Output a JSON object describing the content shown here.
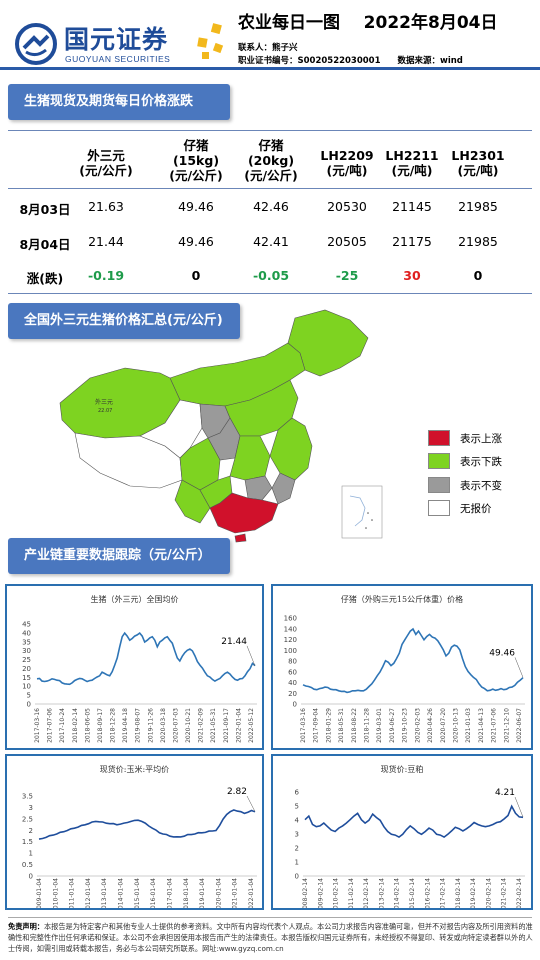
{
  "header": {
    "logo_cn": "国元证券",
    "logo_en": "GUOYUAN SECURITIES",
    "title": "农业每日一图    2022年8月04日",
    "contact": "联系人：熊子兴",
    "cert": "职业证书编号：S0020522030001",
    "source": "数据来源：wind"
  },
  "section1": {
    "title": "生猪现货及期货每日价格涨跌"
  },
  "price_table": {
    "headers": [
      "外三元\n(元/公斤)",
      "仔猪\n(15kg)\n(元/公斤)",
      "仔猪\n(20kg)\n(元/公斤)",
      "LH2209\n(元/吨)",
      "LH2211\n(元/吨)",
      "LH2301\n(元/吨)"
    ],
    "rows": [
      {
        "label": "8月03日",
        "values": [
          "21.63",
          "49.46",
          "42.46",
          "20530",
          "21145",
          "21985"
        ]
      },
      {
        "label": "8月04日",
        "values": [
          "21.44",
          "49.46",
          "42.41",
          "20505",
          "21175",
          "21985"
        ]
      },
      {
        "label": "涨(跌)",
        "values": [
          "-0.19",
          "0",
          "-0.05",
          "-25",
          "30",
          "0"
        ],
        "trend": [
          "down",
          "flat",
          "down",
          "down",
          "up",
          "flat"
        ]
      }
    ]
  },
  "section2": {
    "title": "全国外三元生猪价格汇总(元/公斤)"
  },
  "map": {
    "region_labels": [
      "外三元",
      "22.07"
    ],
    "colors": {
      "up": "#d0112b",
      "down": "#7ed321",
      "flat": "#9a9a9a",
      "none": "#ffffff"
    },
    "legend": [
      {
        "key": "up",
        "label": "表示上涨"
      },
      {
        "key": "down",
        "label": "表示下跌"
      },
      {
        "key": "flat",
        "label": "表示不变"
      },
      {
        "key": "none",
        "label": "无报价"
      }
    ]
  },
  "section3": {
    "title": "产业链重要数据跟踪（元/公斤）"
  },
  "charts": [
    {
      "title": "生猪（外三元）全国均价",
      "type": "line",
      "ylim": [
        0,
        45
      ],
      "yticks": [
        0,
        5,
        10,
        15,
        20,
        25,
        30,
        35,
        40,
        45
      ],
      "xticks": [
        "2017-03-16",
        "2017-07-06",
        "2017-10-24",
        "2018-02-14",
        "2018-06-05",
        "2018-09-17",
        "2018-12-28",
        "2019-04-18",
        "2019-08-07",
        "2019-11-26",
        "2020-03-18",
        "2020-07-03",
        "2020-10-21",
        "2021-02-09",
        "2021-05-31",
        "2021-09-17",
        "2022-01-04",
        "2022-05-12"
      ],
      "last_label": "21.44",
      "color": "#2e75b6",
      "values": [
        14,
        14.5,
        13,
        12.5,
        13,
        13.5,
        14,
        14,
        13.5,
        13,
        12,
        11.5,
        11,
        11.2,
        12,
        13,
        14,
        14.5,
        14,
        13.5,
        12.8,
        13,
        13.5,
        14.5,
        15,
        16,
        18,
        17,
        16.5,
        16,
        18,
        22,
        26,
        32,
        38,
        40,
        38,
        36,
        37,
        38,
        39,
        40,
        38,
        35,
        36,
        37,
        38,
        36,
        32,
        35,
        36,
        37,
        38,
        36,
        34,
        30,
        26,
        24,
        27,
        29,
        30,
        31,
        30,
        27,
        24,
        22,
        20,
        18,
        16,
        15,
        14,
        13,
        13.5,
        14.5,
        16,
        17,
        18,
        17,
        15,
        14,
        13.5,
        14,
        14.5,
        16,
        18,
        20,
        23,
        21.44
      ]
    },
    {
      "title": "仔猪（外购三元15公斤体重）价格",
      "type": "line",
      "ylim": [
        0,
        160
      ],
      "yticks": [
        0,
        20,
        40,
        60,
        80,
        100,
        120,
        140,
        160
      ],
      "xticks": [
        "2017-03-16",
        "2017-09-04",
        "2018-01-29",
        "2018-05-31",
        "2018-08-22",
        "2018-11-28",
        "2019-03-01",
        "2019-06-27",
        "2019-10-23",
        "2020-02-03",
        "2020-04-26",
        "2020-07-20",
        "2020-10-13",
        "2021-01-03",
        "2021-04-13",
        "2021-07-06",
        "2021-12-10",
        "2022-06-07"
      ],
      "last_label": "49.46",
      "color": "#2e75b6",
      "values": [
        35,
        34,
        33,
        30,
        28,
        27,
        28,
        30,
        32,
        30,
        28,
        27,
        26,
        25,
        24,
        23,
        22,
        23,
        24,
        25,
        26,
        24,
        25,
        28,
        32,
        38,
        45,
        52,
        60,
        70,
        80,
        78,
        72,
        75,
        85,
        95,
        110,
        120,
        128,
        135,
        140,
        130,
        135,
        128,
        120,
        125,
        130,
        125,
        122,
        118,
        110,
        100,
        90,
        95,
        105,
        110,
        108,
        100,
        85,
        70,
        60,
        55,
        50,
        45,
        38,
        32,
        28,
        25,
        26,
        27,
        26,
        27,
        28,
        27,
        28,
        30,
        32,
        35,
        40,
        45,
        49.46
      ]
    },
    {
      "title": "现货价:玉米:平均价",
      "type": "line",
      "ylim": [
        0,
        3.5
      ],
      "yticks": [
        0,
        0.5,
        1,
        1.5,
        2,
        2.5,
        3,
        3.5
      ],
      "xticks": [
        "2009-01-04",
        "2010-01-04",
        "2011-01-04",
        "2012-01-04",
        "2013-01-04",
        "2014-01-04",
        "2015-01-04",
        "2016-01-04",
        "2017-01-04",
        "2018-01-04",
        "2019-01-04",
        "2020-01-04",
        "2021-01-04",
        "2022-01-04"
      ],
      "last_label": "2.82",
      "color": "#1f4e9c",
      "values": [
        1.6,
        1.65,
        1.7,
        1.75,
        1.8,
        1.85,
        1.9,
        1.95,
        2.0,
        2.05,
        2.1,
        2.15,
        2.2,
        2.25,
        2.3,
        2.35,
        2.4,
        2.38,
        2.35,
        2.32,
        2.3,
        2.28,
        2.25,
        2.28,
        2.3,
        2.35,
        2.4,
        2.42,
        2.45,
        2.4,
        2.3,
        2.2,
        2.1,
        2.0,
        1.9,
        1.85,
        1.8,
        1.75,
        1.72,
        1.7,
        1.72,
        1.75,
        1.8,
        1.82,
        1.85,
        1.88,
        1.9,
        1.92,
        1.95,
        1.98,
        2.0,
        2.2,
        2.5,
        2.7,
        2.8,
        2.9,
        2.85,
        2.8,
        2.75,
        2.8,
        2.85,
        2.82
      ]
    },
    {
      "title": "现货价:豆粕",
      "type": "line",
      "ylim": [
        0,
        6
      ],
      "yticks": [
        0,
        1,
        2,
        3,
        4,
        5,
        6
      ],
      "xticks": [
        "2008-02-14",
        "2009-02-14",
        "2010-02-14",
        "2011-02-14",
        "2012-02-14",
        "2013-02-14",
        "2014-02-14",
        "2015-02-14",
        "2016-02-14",
        "2017-02-14",
        "2018-02-14",
        "2019-02-14",
        "2020-02-14",
        "2021-02-14",
        "2022-02-14"
      ],
      "last_label": "4.21",
      "color": "#1f4e9c",
      "values": [
        4.0,
        4.3,
        3.7,
        3.5,
        3.6,
        3.8,
        3.5,
        3.3,
        3.2,
        3.4,
        3.6,
        3.8,
        4.0,
        4.3,
        4.5,
        4.0,
        3.8,
        4.0,
        4.4,
        4.2,
        4.0,
        3.5,
        3.2,
        3.0,
        2.9,
        2.8,
        3.0,
        3.3,
        3.6,
        3.4,
        3.1,
        3.0,
        3.2,
        3.4,
        3.3,
        3.0,
        2.9,
        2.8,
        3.0,
        3.2,
        3.5,
        3.4,
        3.2,
        3.4,
        3.6,
        3.8,
        3.7,
        3.6,
        3.5,
        3.6,
        3.7,
        3.8,
        3.9,
        4.1,
        4.3,
        5.0,
        4.5,
        4.2,
        4.21
      ]
    }
  ],
  "footer": {
    "label": "免责声明：",
    "text": "本报告是为特定客户和其他专业人士提供的参考资料。文中所有内容均代表个人观点。本公司力求报告内容准确可靠，但并不对报告内容及所引用资料的准确性和完整性作出任何承诺和保证。本公司不会承担因使用本报告而产生的法律责任。本报告版权归国元证券所有，未经授权不得复印、转发或向特定读者群以外的人士传阅，如需引用或转载本报告，务必与本公司研究所联系。网址:www.gyzq.com.cn"
  }
}
